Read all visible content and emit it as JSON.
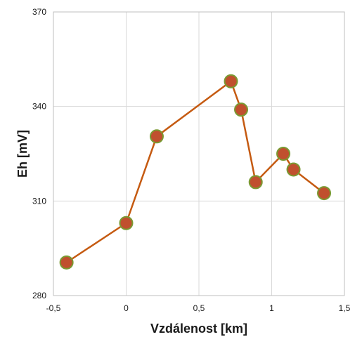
{
  "chart_data": {
    "type": "line",
    "title": "",
    "xlabel": "Vzdálenost [km]",
    "ylabel": "Eh [mV]",
    "xlim": [
      -0.5,
      1.5
    ],
    "ylim": [
      280,
      370
    ],
    "xticks": [
      "-0,5",
      "0",
      "0,5",
      "1",
      "1,5"
    ],
    "yticks": [
      "280",
      "310",
      "340",
      "370"
    ],
    "xtick_values": [
      -0.5,
      0,
      0.5,
      1,
      1.5
    ],
    "ytick_values": [
      280,
      310,
      340,
      370
    ],
    "grid": true,
    "legend": "none",
    "series": [
      {
        "line_color": "#C55A11",
        "marker_color": "#C0502E",
        "marker_edge_color": "#7A9A32",
        "x": [
          -0.41,
          0.0,
          0.21,
          0.72,
          0.79,
          0.89,
          1.08,
          1.15,
          1.36
        ],
        "y": [
          290.5,
          303,
          330.5,
          348,
          339,
          316,
          325,
          320,
          312.5
        ]
      }
    ]
  }
}
